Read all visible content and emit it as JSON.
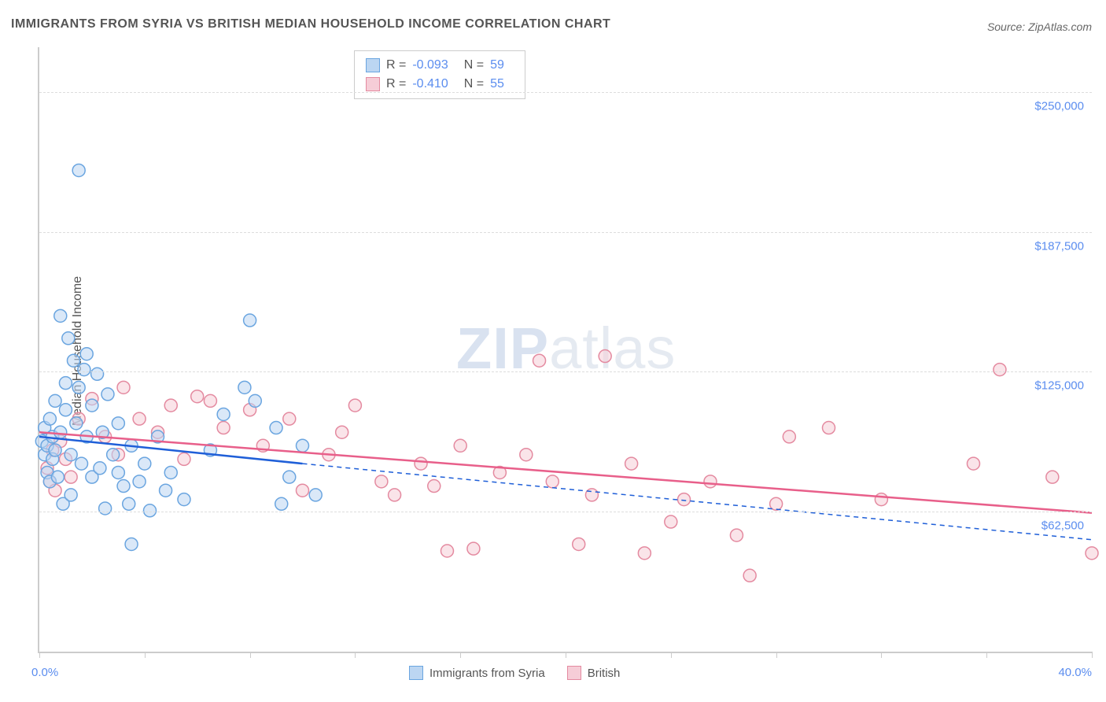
{
  "title": "IMMIGRANTS FROM SYRIA VS BRITISH MEDIAN HOUSEHOLD INCOME CORRELATION CHART",
  "source": "Source: ZipAtlas.com",
  "ylabel": "Median Household Income",
  "watermark_a": "ZIP",
  "watermark_b": "atlas",
  "chart": {
    "type": "scatter",
    "xlim": [
      0,
      40
    ],
    "ylim": [
      0,
      270000
    ],
    "x_tick_positions": [
      0,
      4,
      8,
      12,
      16,
      20,
      24,
      28,
      32,
      36,
      40
    ],
    "x_tick_labels_shown": {
      "0": "0.0%",
      "40": "40.0%"
    },
    "y_gridlines": [
      62500,
      125000,
      187500,
      250000
    ],
    "y_tick_labels": {
      "62500": "$62,500",
      "125000": "$125,000",
      "187500": "$187,500",
      "250000": "$250,000"
    },
    "background_color": "#ffffff",
    "grid_color": "#dddddd",
    "axis_color": "#cccccc",
    "tick_label_color": "#5b8def",
    "marker_radius": 8,
    "marker_stroke_width": 1.5,
    "line_width_solid": 2.5,
    "line_width_dashed": 1.5,
    "dash_pattern": "6 5"
  },
  "series": {
    "syria": {
      "label": "Immigrants from Syria",
      "R": "-0.093",
      "N": "59",
      "fill": "#bcd6f2",
      "fill_opacity": 0.55,
      "stroke": "#6aa5e0",
      "line_color": "#1f5fd8",
      "trend_solid": {
        "x1": 0,
        "y1": 96000,
        "x2": 10,
        "y2": 84000
      },
      "trend_dashed": {
        "x1": 10,
        "y1": 84000,
        "x2": 40,
        "y2": 50000
      },
      "points": [
        [
          0.1,
          94000
        ],
        [
          0.2,
          88000
        ],
        [
          0.2,
          100000
        ],
        [
          0.3,
          92000
        ],
        [
          0.3,
          80000
        ],
        [
          0.4,
          104000
        ],
        [
          0.4,
          76000
        ],
        [
          0.5,
          96000
        ],
        [
          0.5,
          86000
        ],
        [
          0.6,
          112000
        ],
        [
          0.6,
          90000
        ],
        [
          0.7,
          78000
        ],
        [
          0.8,
          150000
        ],
        [
          0.8,
          98000
        ],
        [
          0.9,
          66000
        ],
        [
          1.0,
          120000
        ],
        [
          1.0,
          108000
        ],
        [
          1.1,
          140000
        ],
        [
          1.2,
          88000
        ],
        [
          1.2,
          70000
        ],
        [
          1.3,
          130000
        ],
        [
          1.4,
          102000
        ],
        [
          1.5,
          118000
        ],
        [
          1.5,
          215000
        ],
        [
          1.6,
          84000
        ],
        [
          1.7,
          126000
        ],
        [
          1.8,
          96000
        ],
        [
          1.8,
          133000
        ],
        [
          2.0,
          110000
        ],
        [
          2.0,
          78000
        ],
        [
          2.2,
          124000
        ],
        [
          2.3,
          82000
        ],
        [
          2.4,
          98000
        ],
        [
          2.5,
          64000
        ],
        [
          2.6,
          115000
        ],
        [
          2.8,
          88000
        ],
        [
          3.0,
          80000
        ],
        [
          3.0,
          102000
        ],
        [
          3.2,
          74000
        ],
        [
          3.4,
          66000
        ],
        [
          3.5,
          92000
        ],
        [
          3.5,
          48000
        ],
        [
          3.8,
          76000
        ],
        [
          4.0,
          84000
        ],
        [
          4.2,
          63000
        ],
        [
          4.5,
          96000
        ],
        [
          4.8,
          72000
        ],
        [
          5.0,
          80000
        ],
        [
          5.5,
          68000
        ],
        [
          6.5,
          90000
        ],
        [
          7.0,
          106000
        ],
        [
          7.8,
          118000
        ],
        [
          8.0,
          148000
        ],
        [
          8.2,
          112000
        ],
        [
          9.0,
          100000
        ],
        [
          9.2,
          66000
        ],
        [
          9.5,
          78000
        ],
        [
          10.0,
          92000
        ],
        [
          10.5,
          70000
        ]
      ]
    },
    "british": {
      "label": "British",
      "R": "-0.410",
      "N": "55",
      "fill": "#f6cdd7",
      "fill_opacity": 0.55,
      "stroke": "#e48aa0",
      "line_color": "#e85f8a",
      "trend_solid": {
        "x1": 0,
        "y1": 98000,
        "x2": 40,
        "y2": 62000
      },
      "points": [
        [
          0.3,
          82000
        ],
        [
          0.4,
          76000
        ],
        [
          0.5,
          90000
        ],
        [
          0.6,
          72000
        ],
        [
          0.8,
          94000
        ],
        [
          1.0,
          86000
        ],
        [
          1.2,
          78000
        ],
        [
          1.5,
          104000
        ],
        [
          2.0,
          113000
        ],
        [
          2.5,
          96000
        ],
        [
          3.0,
          88000
        ],
        [
          3.2,
          118000
        ],
        [
          3.8,
          104000
        ],
        [
          4.5,
          98000
        ],
        [
          5.0,
          110000
        ],
        [
          5.5,
          86000
        ],
        [
          6.0,
          114000
        ],
        [
          6.5,
          112000
        ],
        [
          7.0,
          100000
        ],
        [
          8.0,
          108000
        ],
        [
          8.5,
          92000
        ],
        [
          9.5,
          104000
        ],
        [
          10.0,
          72000
        ],
        [
          11.0,
          88000
        ],
        [
          11.5,
          98000
        ],
        [
          12.0,
          110000
        ],
        [
          13.0,
          76000
        ],
        [
          13.5,
          70000
        ],
        [
          14.5,
          84000
        ],
        [
          15.0,
          74000
        ],
        [
          15.5,
          45000
        ],
        [
          16.0,
          92000
        ],
        [
          16.5,
          46000
        ],
        [
          17.5,
          80000
        ],
        [
          18.5,
          88000
        ],
        [
          19.0,
          130000
        ],
        [
          19.5,
          76000
        ],
        [
          20.5,
          48000
        ],
        [
          21.0,
          70000
        ],
        [
          21.5,
          132000
        ],
        [
          22.5,
          84000
        ],
        [
          23.0,
          44000
        ],
        [
          24.0,
          58000
        ],
        [
          24.5,
          68000
        ],
        [
          25.5,
          76000
        ],
        [
          26.5,
          52000
        ],
        [
          27.0,
          34000
        ],
        [
          28.0,
          66000
        ],
        [
          28.5,
          96000
        ],
        [
          30.0,
          100000
        ],
        [
          32.0,
          68000
        ],
        [
          35.5,
          84000
        ],
        [
          36.5,
          126000
        ],
        [
          38.5,
          78000
        ],
        [
          40.0,
          44000
        ]
      ]
    }
  },
  "legend_top": {
    "R_label": "R =",
    "N_label": "N ="
  }
}
